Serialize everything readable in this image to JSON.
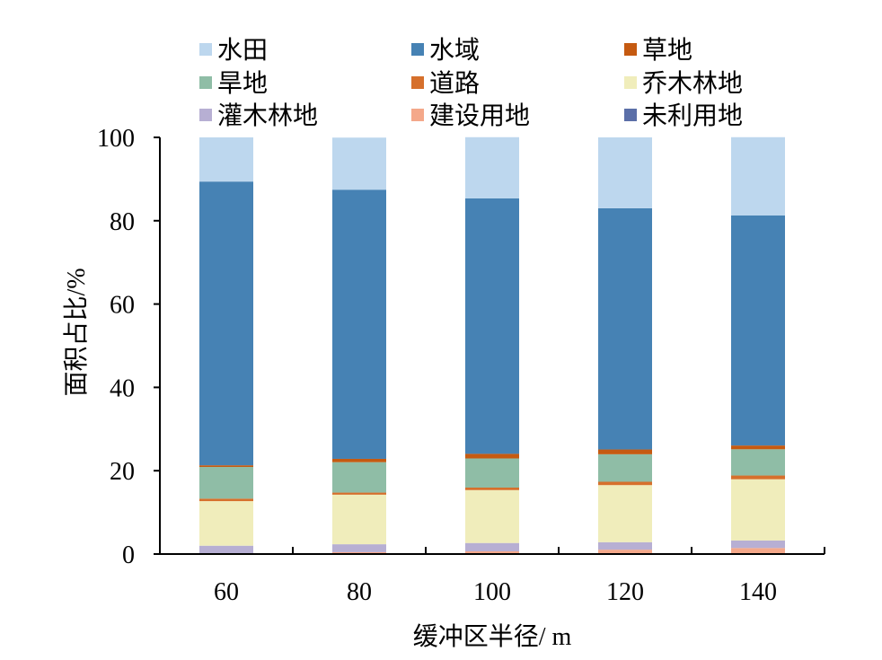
{
  "chart_data": {
    "type": "bar",
    "stacked": true,
    "title": "",
    "xlabel": "缓冲区半径/ m",
    "ylabel": "面积占比/%",
    "ylim": [
      0,
      100
    ],
    "yticks": [
      "0",
      "20",
      "40",
      "60",
      "80",
      "100"
    ],
    "categories": [
      "60",
      "80",
      "100",
      "120",
      "140"
    ],
    "legend_position": "top",
    "legend_order": [
      "水田",
      "水域",
      "草地",
      "旱地",
      "道路",
      "乔木林地",
      "灌木林地",
      "建设用地",
      "未利用地"
    ],
    "series": [
      {
        "name": "未利用地",
        "color": "#5B6FA8",
        "values": [
          0.05,
          0.05,
          0.05,
          0.05,
          0.05
        ]
      },
      {
        "name": "建设用地",
        "color": "#F4A88A",
        "values": [
          0.15,
          0.4,
          0.6,
          1.0,
          1.4
        ]
      },
      {
        "name": "灌木林地",
        "color": "#B7AFD3",
        "values": [
          1.8,
          1.9,
          2.0,
          1.8,
          1.8
        ]
      },
      {
        "name": "乔木林地",
        "color": "#F0EDBB",
        "values": [
          10.7,
          11.9,
          12.7,
          13.7,
          14.7
        ]
      },
      {
        "name": "道路",
        "color": "#D6702C",
        "values": [
          0.6,
          0.5,
          0.6,
          0.8,
          0.9
        ]
      },
      {
        "name": "旱地",
        "color": "#8FBDA6",
        "values": [
          7.6,
          7.3,
          7.0,
          6.6,
          6.3
        ]
      },
      {
        "name": "草地",
        "color": "#C55A11",
        "values": [
          0.4,
          0.8,
          1.1,
          1.15,
          0.9
        ]
      },
      {
        "name": "水域",
        "color": "#4682B4",
        "values": [
          68.1,
          64.6,
          61.3,
          57.9,
          55.2
        ]
      },
      {
        "name": "水田",
        "color": "#BDD7EE",
        "values": [
          10.6,
          12.5,
          14.7,
          17.0,
          18.8
        ]
      }
    ]
  }
}
